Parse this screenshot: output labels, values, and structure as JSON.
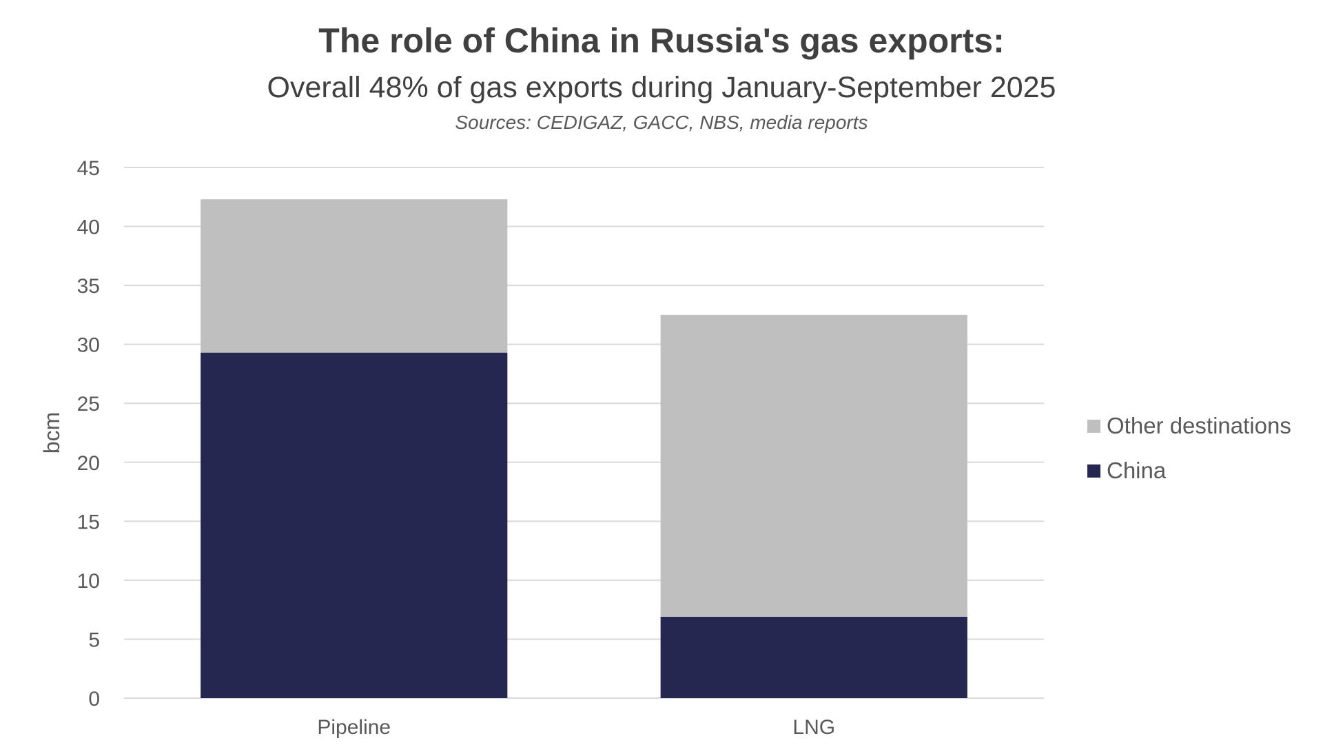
{
  "title": "The role of China in Russia's gas exports:",
  "subtitle": "Overall 48% of gas exports during January-September 2025",
  "source": "Sources: CEDIGAZ, GACC, NBS, media reports",
  "colors": {
    "china": "#262751",
    "other": "#bfbfbf",
    "gridline": "#d9d9d9"
  },
  "chart_data": {
    "type": "bar",
    "stacked": true,
    "categories": [
      "Pipeline",
      "LNG"
    ],
    "series": [
      {
        "name": "China",
        "values": [
          29.3,
          6.9
        ],
        "color": "#262751"
      },
      {
        "name": "Other destinations",
        "values": [
          13.0,
          25.6
        ],
        "color": "#bfbfbf"
      }
    ],
    "ylabel": "bcm",
    "xlabel": "",
    "ylim": [
      0,
      45
    ],
    "yticks": [
      0,
      5,
      10,
      15,
      20,
      25,
      30,
      35,
      40,
      45
    ],
    "grid": true,
    "legend_position": "right",
    "legend_order": [
      "Other destinations",
      "China"
    ]
  }
}
